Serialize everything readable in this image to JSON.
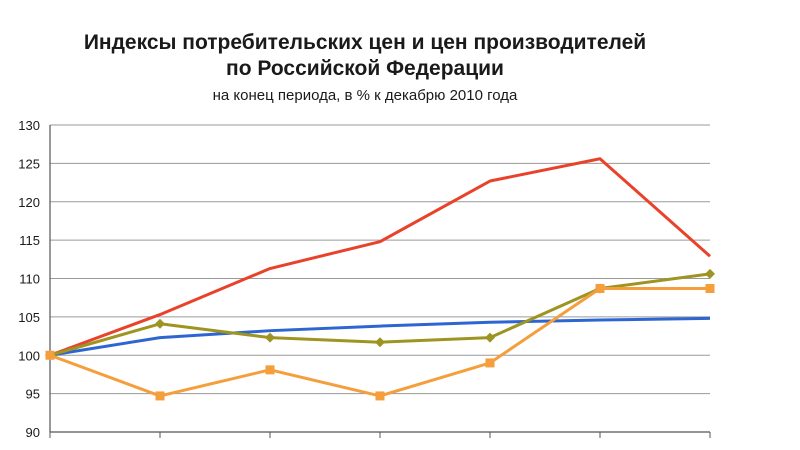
{
  "chart_data": {
    "type": "line",
    "title_line1": "Индексы потребительских цен и цен производителей",
    "title_line2": "по Российской Федерации",
    "subtitle": "на конец периода, в % к декабрю 2010 года",
    "xlabel": "",
    "ylabel": "",
    "ylim": [
      90,
      130
    ],
    "yticks": [
      90,
      95,
      100,
      105,
      110,
      115,
      120,
      125,
      130
    ],
    "xcount": 7,
    "grid": true,
    "series": [
      {
        "color": "#e8432a",
        "marker": "none",
        "values": [
          100.0,
          105.3,
          111.3,
          114.8,
          122.7,
          125.6,
          112.9
        ]
      },
      {
        "color": "#2e66d1",
        "marker": "none",
        "values": [
          100.0,
          102.3,
          103.2,
          103.8,
          104.3,
          104.6,
          104.8
        ]
      },
      {
        "color": "#9e9422",
        "marker": "diamond",
        "values": [
          100.0,
          104.1,
          102.3,
          101.7,
          102.3,
          108.7,
          110.6
        ]
      },
      {
        "color": "#f59e3c",
        "marker": "square",
        "values": [
          100.0,
          94.7,
          98.1,
          94.7,
          99.0,
          108.7,
          108.7
        ]
      }
    ]
  }
}
